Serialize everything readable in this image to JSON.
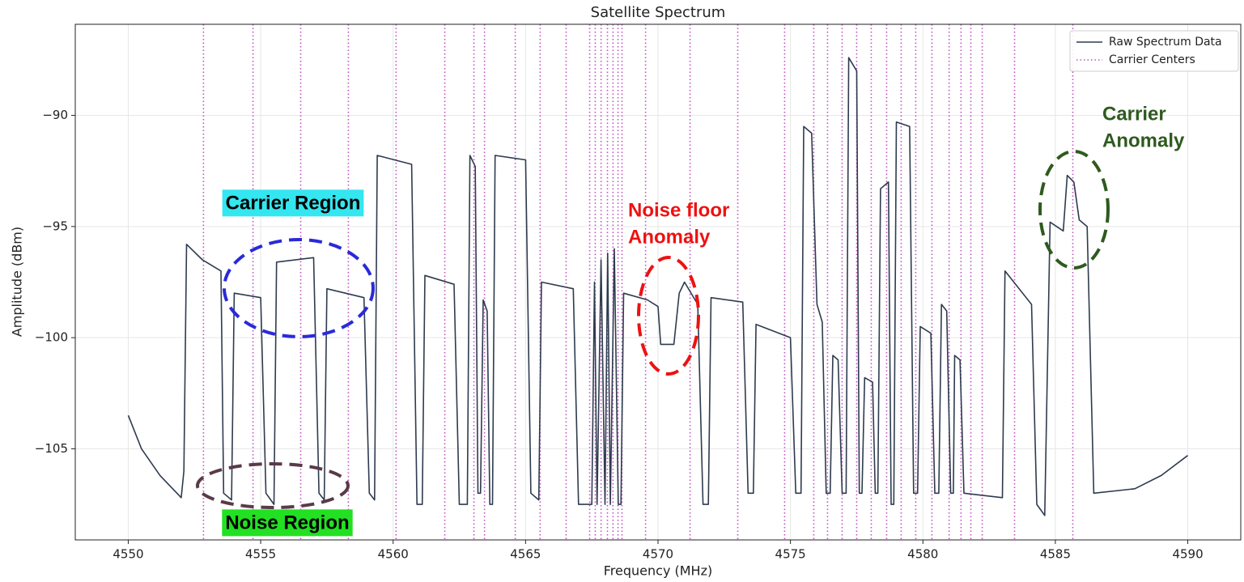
{
  "chart_data": {
    "type": "line",
    "title": "Satellite Spectrum",
    "xlabel": "Frequency (MHz)",
    "ylabel": "Amplitude (dBm)",
    "xlim": [
      4548,
      4592
    ],
    "ylim": [
      -109.1,
      -85.9
    ],
    "xticks": [
      4550,
      4555,
      4560,
      4565,
      4570,
      4575,
      4580,
      4585,
      4590
    ],
    "yticks": [
      {
        "value": -90,
        "label": "−90"
      },
      {
        "value": -95,
        "label": "−95"
      },
      {
        "value": -100,
        "label": "−100"
      },
      {
        "value": -105,
        "label": "−105"
      }
    ],
    "grid": true,
    "legend": "upper right",
    "x": [
      4550,
      4550.5,
      4551.2,
      4552.0,
      4552.1,
      4552.2,
      4552.8,
      4553.5,
      4553.6,
      4553.9,
      4554.0,
      4555.0,
      4555.2,
      4555.5,
      4555.6,
      4557.0,
      4557.2,
      4557.4,
      4557.5,
      4558.9,
      4559.1,
      4559.3,
      4559.4,
      4560.7,
      4560.9,
      4561.1,
      4561.2,
      4562.3,
      4562.5,
      4562.8,
      4562.9,
      4563.1,
      4563.2,
      4563.3,
      4563.4,
      4563.55,
      4563.65,
      4563.75,
      4563.85,
      4565.0,
      4565.2,
      4565.5,
      4565.6,
      4566.8,
      4567.0,
      4567.5,
      4567.6,
      4567.7,
      4567.85,
      4568.0,
      4568.1,
      4568.2,
      4568.35,
      4568.5,
      4568.6,
      4568.7,
      4569.6,
      4570.0,
      4570.1,
      4570.6,
      4570.8,
      4571.0,
      4571.5,
      4571.7,
      4571.9,
      4572.0,
      4573.2,
      4573.4,
      4573.6,
      4573.7,
      4575.0,
      4575.2,
      4575.4,
      4575.5,
      4575.8,
      4576.0,
      4576.2,
      4576.35,
      4576.5,
      4576.6,
      4576.8,
      4576.95,
      4577.1,
      4577.2,
      4577.5,
      4577.6,
      4577.7,
      4577.8,
      4578.1,
      4578.2,
      4578.3,
      4578.4,
      4578.7,
      4578.8,
      4578.9,
      4579.0,
      4579.5,
      4579.65,
      4579.8,
      4579.9,
      4580.3,
      4580.45,
      4580.6,
      4580.7,
      4580.9,
      4581.05,
      4581.15,
      4581.2,
      4581.4,
      4581.55,
      4583.0,
      4583.1,
      4584.1,
      4584.3,
      4584.6,
      4584.8,
      4585.3,
      4585.45,
      4585.7,
      4585.9,
      4586.2,
      4586.45,
      4588.0,
      4589.0,
      4590.0
    ],
    "series": [
      {
        "name": "Raw Spectrum Data",
        "color": "#2e3b4e",
        "values": [
          -103.5,
          -105,
          -106.2,
          -107.2,
          -106,
          -95.8,
          -96.5,
          -97,
          -107,
          -107.3,
          -98,
          -98.2,
          -107,
          -107.5,
          -96.6,
          -96.4,
          -107,
          -107.3,
          -97.8,
          -98.2,
          -107,
          -107.3,
          -91.8,
          -92.2,
          -107.5,
          -107.5,
          -97.2,
          -97.6,
          -107.5,
          -107.5,
          -91.8,
          -92.3,
          -107,
          -107,
          -98.3,
          -98.8,
          -107.5,
          -107.5,
          -91.8,
          -92,
          -107,
          -107.3,
          -97.5,
          -97.8,
          -107.5,
          -107.5,
          -97.5,
          -107.5,
          -96.5,
          -107.5,
          -96.2,
          -107.5,
          -96,
          -107.5,
          -107.5,
          -98,
          -98.3,
          -98.6,
          -100.3,
          -100.3,
          -98,
          -97.5,
          -98.5,
          -107.5,
          -107.5,
          -98.2,
          -98.4,
          -107,
          -107,
          -99.4,
          -100,
          -107,
          -107,
          -90.5,
          -90.8,
          -98.5,
          -99.3,
          -107,
          -107,
          -100.8,
          -101,
          -107,
          -107,
          -87.4,
          -88,
          -107,
          -107,
          -101.8,
          -102,
          -107,
          -107,
          -93.3,
          -93,
          -107.5,
          -107.5,
          -90.3,
          -90.5,
          -107,
          -107,
          -99.5,
          -99.8,
          -107,
          -107,
          -98.5,
          -98.8,
          -107,
          -107,
          -100.8,
          -101,
          -107,
          -107.2,
          -97,
          -98.5,
          -107.5,
          -108,
          -94.8,
          -95.2,
          -92.7,
          -93,
          -94.7,
          -95,
          -107,
          -106.8,
          -106.2,
          -105.3
        ]
      },
      {
        "name": "Carrier Centers",
        "color": "#c050c0",
        "x": [
          4552.84,
          4554.71,
          4556.51,
          4558.31,
          4560.11,
          4561.95,
          4563.05,
          4563.45,
          4564.61,
          4565.55,
          4566.53,
          4567.42,
          4567.63,
          4567.85,
          4568.09,
          4568.3,
          4568.49,
          4568.64,
          4569.53,
          4571.21,
          4573.01,
          4574.78,
          4575.88,
          4576.4,
          4576.95,
          4577.5,
          4578.05,
          4578.63,
          4579.18,
          4579.73,
          4580.34,
          4580.99,
          4581.44,
          4581.81,
          4582.24,
          4583.46,
          4585.66
        ]
      }
    ],
    "annotations": [
      {
        "lines": [
          "Carrier Region"
        ],
        "color": "#000000",
        "background": "#33e6f0"
      },
      {
        "lines": [
          "Noise Region"
        ],
        "color": "#000000",
        "background": "#22e022"
      },
      {
        "lines": [
          "Noise floor",
          "Anomaly"
        ],
        "color": "#ee1111"
      },
      {
        "lines": [
          "Carrier",
          "Anomaly"
        ],
        "color": "#2e5a1e"
      }
    ]
  }
}
